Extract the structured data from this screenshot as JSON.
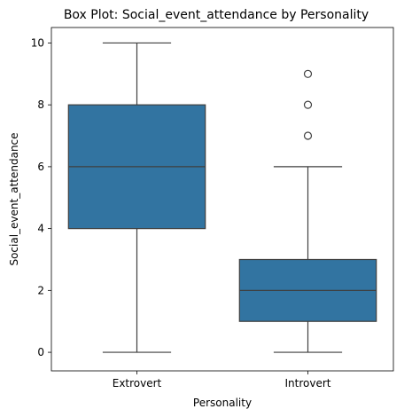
{
  "chart_data": {
    "type": "box",
    "title": "Box Plot: Social_event_attendance by Personality",
    "xlabel": "Personality",
    "ylabel": "Social_event_attendance",
    "ylim": [
      -0.6,
      10.5
    ],
    "yticks": [
      0,
      2,
      4,
      6,
      8,
      10
    ],
    "categories": [
      "Extrovert",
      "Introvert"
    ],
    "boxes": [
      {
        "category": "Extrovert",
        "whisker_low": 0,
        "q1": 4,
        "median": 6,
        "q3": 8,
        "whisker_high": 10,
        "outliers": []
      },
      {
        "category": "Introvert",
        "whisker_low": 0,
        "q1": 1,
        "median": 2,
        "q3": 3,
        "whisker_high": 6,
        "outliers": [
          7,
          8,
          9
        ]
      }
    ],
    "box_color": "#3274a1",
    "line_color": "#3f3f3f",
    "grid": false,
    "legend": "none"
  }
}
